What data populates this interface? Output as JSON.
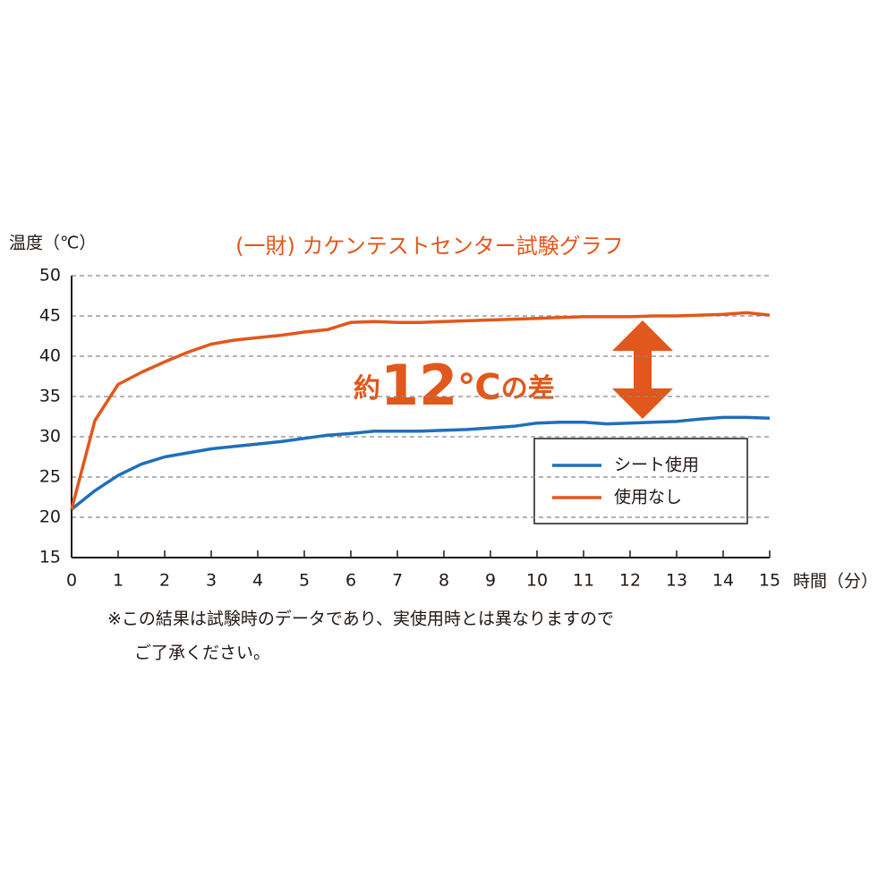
{
  "chart_data": {
    "type": "line",
    "title": "(一財) カケンテストセンター試験グラフ",
    "y_label": "温度（℃）",
    "x_label": "時間（分）",
    "annotation": [
      "約",
      "12",
      "℃",
      "の差"
    ],
    "footnote": [
      "※この結果は試験時のデータであり、実使用時とは異なりますので",
      "ご了承ください。"
    ],
    "x": [
      0,
      0.5,
      1,
      1.5,
      2,
      2.5,
      3,
      3.5,
      4,
      4.5,
      5,
      5.5,
      6,
      6.5,
      7,
      7.5,
      8,
      8.5,
      9,
      9.5,
      10,
      10.5,
      11,
      11.5,
      12,
      12.5,
      13,
      13.5,
      14,
      14.5,
      15
    ],
    "series": [
      {
        "name": "シート使用",
        "color": "#1f6fba",
        "values": [
          21,
          23.3,
          25.2,
          26.6,
          27.5,
          28,
          28.5,
          28.8,
          29.1,
          29.4,
          29.8,
          30.2,
          30.4,
          30.7,
          30.7,
          30.7,
          30.8,
          30.9,
          31.1,
          31.3,
          31.7,
          31.8,
          31.8,
          31.6,
          31.7,
          31.8,
          31.9,
          32.2,
          32.4,
          32.4,
          32.3
        ]
      },
      {
        "name": "使用なし",
        "color": "#e2571b",
        "values": [
          21,
          32,
          36.5,
          38,
          39.3,
          40.5,
          41.5,
          42,
          42.3,
          42.6,
          43,
          43.3,
          44.2,
          44.3,
          44.2,
          44.2,
          44.3,
          44.4,
          44.5,
          44.6,
          44.7,
          44.8,
          44.9,
          44.9,
          44.9,
          45,
          45,
          45.1,
          45.2,
          45.4,
          45.1
        ]
      }
    ],
    "xlim": [
      0,
      15
    ],
    "xticks": [
      0,
      1,
      2,
      3,
      4,
      5,
      6,
      7,
      8,
      9,
      10,
      11,
      12,
      13,
      14,
      15
    ],
    "ylim": [
      15,
      50
    ],
    "yticks": [
      15,
      20,
      25,
      30,
      35,
      40,
      45,
      50
    ],
    "grid": true
  }
}
